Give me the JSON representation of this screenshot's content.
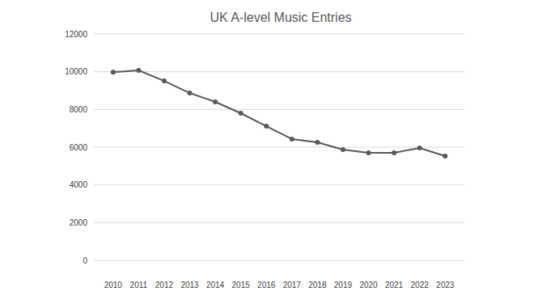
{
  "chart_data": {
    "type": "line",
    "title": "UK A-level Music Entries",
    "categories": [
      "2010",
      "2011",
      "2012",
      "2013",
      "2014",
      "2015",
      "2016",
      "2017",
      "2018",
      "2019",
      "2020",
      "2021",
      "2022",
      "2023"
    ],
    "values": [
      9970,
      10070,
      9510,
      8870,
      8400,
      7800,
      7110,
      6430,
      6260,
      5870,
      5700,
      5700,
      5960,
      5530
    ],
    "color": "#595959",
    "marker": "circle",
    "ylim": [
      0,
      12000
    ],
    "yticks": [
      0,
      2000,
      4000,
      6000,
      8000,
      10000,
      12000
    ],
    "grid": true
  }
}
